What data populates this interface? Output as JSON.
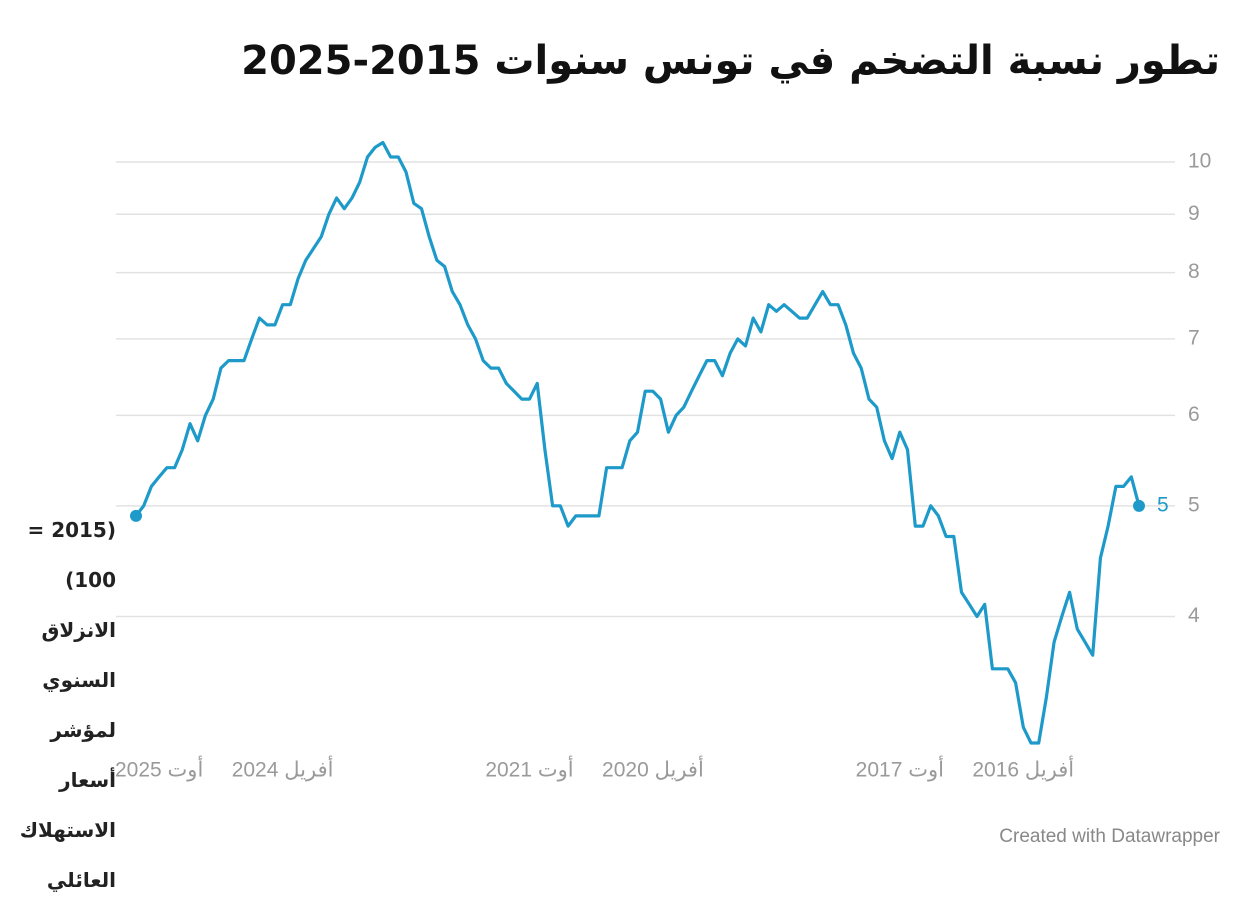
{
  "chart_data": {
    "type": "line",
    "title": "تطور نسبة التضخم في تونس سنوات 2015-2025",
    "y_label": "(2015 = 100) الانزلاق السنوي لمؤشر أسعار الاستهلاك العائلي",
    "credit": "Created with Datawrapper",
    "color": "#1d9ac9",
    "y_scale": "log",
    "x_reversed": true,
    "grid": true,
    "x": [
      "2015-01",
      "2015-02",
      "2015-03",
      "2015-04",
      "2015-05",
      "2015-06",
      "2015-07",
      "2015-08",
      "2015-09",
      "2015-10",
      "2015-11",
      "2015-12",
      "2016-01",
      "2016-02",
      "2016-03",
      "2016-04",
      "2016-05",
      "2016-06",
      "2016-07",
      "2016-08",
      "2016-09",
      "2016-10",
      "2016-11",
      "2016-12",
      "2017-01",
      "2017-02",
      "2017-03",
      "2017-04",
      "2017-05",
      "2017-06",
      "2017-07",
      "2017-08",
      "2017-09",
      "2017-10",
      "2017-11",
      "2017-12",
      "2018-01",
      "2018-02",
      "2018-03",
      "2018-04",
      "2018-05",
      "2018-06",
      "2018-07",
      "2018-08",
      "2018-09",
      "2018-10",
      "2018-11",
      "2018-12",
      "2019-01",
      "2019-02",
      "2019-03",
      "2019-04",
      "2019-05",
      "2019-06",
      "2019-07",
      "2019-08",
      "2019-09",
      "2019-10",
      "2019-11",
      "2019-12",
      "2020-01",
      "2020-02",
      "2020-03",
      "2020-04",
      "2020-05",
      "2020-06",
      "2020-07",
      "2020-08",
      "2020-09",
      "2020-10",
      "2020-11",
      "2020-12",
      "2021-01",
      "2021-02",
      "2021-03",
      "2021-04",
      "2021-05",
      "2021-06",
      "2021-07",
      "2021-08",
      "2021-09",
      "2021-10",
      "2021-11",
      "2021-12",
      "2022-01",
      "2022-02",
      "2022-03",
      "2022-04",
      "2022-05",
      "2022-06",
      "2022-07",
      "2022-08",
      "2022-09",
      "2022-10",
      "2022-11",
      "2022-12",
      "2023-01",
      "2023-02",
      "2023-03",
      "2023-04",
      "2023-05",
      "2023-06",
      "2023-07",
      "2023-08",
      "2023-09",
      "2023-10",
      "2023-11",
      "2023-12",
      "2024-01",
      "2024-02",
      "2024-03",
      "2024-04",
      "2024-05",
      "2024-06",
      "2024-07",
      "2024-08",
      "2024-09",
      "2024-10",
      "2024-11",
      "2024-12",
      "2025-01",
      "2025-02",
      "2025-03",
      "2025-04",
      "2025-05",
      "2025-06",
      "2025-07",
      "2025-08",
      "2025-09",
      "2025-10",
      "2025-11"
    ],
    "values": [
      5,
      5.3,
      5.2,
      5.2,
      4.8,
      4.5,
      3.7,
      3.8,
      3.9,
      4.2,
      4.0,
      3.8,
      3.4,
      3.1,
      3.1,
      3.2,
      3.5,
      3.6,
      3.6,
      3.6,
      4.1,
      4.0,
      4.1,
      4.2,
      4.7,
      4.7,
      4.9,
      5.0,
      4.8,
      4.8,
      5.6,
      5.8,
      5.5,
      5.7,
      6.1,
      6.2,
      6.6,
      6.8,
      7.2,
      7.5,
      7.5,
      7.7,
      7.5,
      7.3,
      7.3,
      7.4,
      7.5,
      7.4,
      7.5,
      7.1,
      7.3,
      6.9,
      7.0,
      6.8,
      6.5,
      6.7,
      6.7,
      6.5,
      6.3,
      6.1,
      6.0,
      5.8,
      6.2,
      6.3,
      6.3,
      5.8,
      5.7,
      5.4,
      5.4,
      5.4,
      4.9,
      4.9,
      4.9,
      4.9,
      4.8,
      5.0,
      5.0,
      5.6,
      6.4,
      6.2,
      6.2,
      6.3,
      6.4,
      6.6,
      6.6,
      6.7,
      7.0,
      7.2,
      7.5,
      7.7,
      8.1,
      8.2,
      8.6,
      9.1,
      9.2,
      9.8,
      10.1,
      10.1,
      10.4,
      10.3,
      10.1,
      9.6,
      9.3,
      9.1,
      9.3,
      9.0,
      8.6,
      8.4,
      8.2,
      7.9,
      7.5,
      7.5,
      7.2,
      7.2,
      7.3,
      7.0,
      6.7,
      6.7,
      6.7,
      6.6,
      6.2,
      6.0,
      5.7,
      5.9,
      5.6,
      5.4,
      5.4,
      5.3,
      5.2,
      5.0,
      4.9
    ],
    "xlim": [
      "2015-01",
      "2025-11"
    ],
    "xticks": [
      {
        "value": "2025-08",
        "label": "أوت 2025"
      },
      {
        "value": "2024-04",
        "label": "أفريل 2024"
      },
      {
        "value": "2021-08",
        "label": "أوت 2021"
      },
      {
        "value": "2020-04",
        "label": "أفريل 2020"
      },
      {
        "value": "2017-08",
        "label": "أوت 2017"
      },
      {
        "value": "2016-04",
        "label": "أفريل 2016"
      }
    ],
    "ylim": [
      3.1,
      10.4
    ],
    "yticks": [
      4,
      5,
      6,
      7,
      8,
      9,
      10
    ]
  }
}
